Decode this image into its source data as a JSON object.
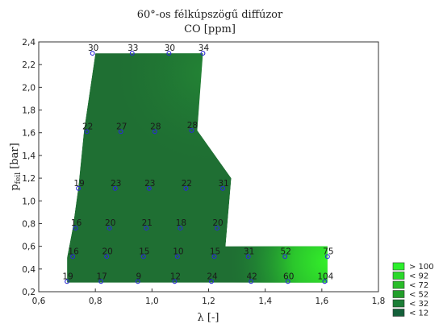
{
  "chart_data": {
    "type": "contour",
    "title": "60°-os félkúpszögű diffúzor",
    "subtitle": "CO [ppm]",
    "xlabel": "λ [-]",
    "ylabel_main": "p",
    "ylabel_sub": "feil",
    "ylabel_unit": "[bar]",
    "xlim": [
      0.6,
      1.8
    ],
    "ylim": [
      0.2,
      2.4
    ],
    "x_ticks": [
      "0,6",
      "0,8",
      "1,0",
      "1,2",
      "1,4",
      "1,6",
      "1,8"
    ],
    "y_ticks": [
      "0,2",
      "0,4",
      "0,6",
      "0,8",
      "1,0",
      "1,2",
      "1,4",
      "1,6",
      "1,8",
      "2,0",
      "2,2",
      "2,4"
    ],
    "region": [
      [
        0.8,
        2.3
      ],
      [
        1.18,
        2.3
      ],
      [
        1.16,
        1.62
      ],
      [
        1.28,
        1.2
      ],
      [
        1.26,
        0.6
      ],
      [
        1.62,
        0.6
      ],
      [
        1.62,
        0.28
      ],
      [
        0.7,
        0.28
      ],
      [
        0.7,
        0.5
      ],
      [
        0.72,
        0.76
      ],
      [
        0.74,
        1.12
      ],
      [
        0.76,
        1.62
      ]
    ],
    "points": [
      {
        "x": 0.79,
        "y": 2.3,
        "value": "30"
      },
      {
        "x": 0.93,
        "y": 2.3,
        "value": "33"
      },
      {
        "x": 1.06,
        "y": 2.3,
        "value": "30"
      },
      {
        "x": 1.18,
        "y": 2.3,
        "value": "34"
      },
      {
        "x": 0.77,
        "y": 1.61,
        "value": "22"
      },
      {
        "x": 0.89,
        "y": 1.61,
        "value": "27"
      },
      {
        "x": 1.01,
        "y": 1.61,
        "value": "28"
      },
      {
        "x": 1.14,
        "y": 1.62,
        "value": "28"
      },
      {
        "x": 0.74,
        "y": 1.11,
        "value": "19"
      },
      {
        "x": 0.87,
        "y": 1.11,
        "value": "23"
      },
      {
        "x": 0.99,
        "y": 1.11,
        "value": "23"
      },
      {
        "x": 1.12,
        "y": 1.11,
        "value": "22"
      },
      {
        "x": 1.25,
        "y": 1.11,
        "value": "31"
      },
      {
        "x": 0.73,
        "y": 0.76,
        "value": "16"
      },
      {
        "x": 0.85,
        "y": 0.76,
        "value": "20"
      },
      {
        "x": 0.98,
        "y": 0.76,
        "value": "21"
      },
      {
        "x": 1.1,
        "y": 0.76,
        "value": "18"
      },
      {
        "x": 1.23,
        "y": 0.76,
        "value": "20"
      },
      {
        "x": 0.72,
        "y": 0.51,
        "value": "16"
      },
      {
        "x": 0.84,
        "y": 0.51,
        "value": "20"
      },
      {
        "x": 0.97,
        "y": 0.51,
        "value": "15"
      },
      {
        "x": 1.09,
        "y": 0.51,
        "value": "10"
      },
      {
        "x": 1.22,
        "y": 0.51,
        "value": "15"
      },
      {
        "x": 1.34,
        "y": 0.51,
        "value": "31"
      },
      {
        "x": 1.47,
        "y": 0.51,
        "value": "52"
      },
      {
        "x": 1.62,
        "y": 0.51,
        "value": "75"
      },
      {
        "x": 0.7,
        "y": 0.29,
        "value": "19"
      },
      {
        "x": 0.82,
        "y": 0.29,
        "value": "17"
      },
      {
        "x": 0.95,
        "y": 0.29,
        "value": "9"
      },
      {
        "x": 1.08,
        "y": 0.29,
        "value": "12"
      },
      {
        "x": 1.21,
        "y": 0.29,
        "value": "24"
      },
      {
        "x": 1.35,
        "y": 0.29,
        "value": "42"
      },
      {
        "x": 1.48,
        "y": 0.29,
        "value": "60"
      },
      {
        "x": 1.61,
        "y": 0.29,
        "value": "104"
      }
    ],
    "legend": {
      "placement": "bottom-right",
      "items": [
        {
          "label": "> 100",
          "color": "#2cf02c"
        },
        {
          "label": "< 92",
          "color": "#2bd92b"
        },
        {
          "label": "< 72",
          "color": "#29bd29"
        },
        {
          "label": "< 52",
          "color": "#229e2a"
        },
        {
          "label": "< 32",
          "color": "#1b7d36"
        },
        {
          "label": "< 12",
          "color": "#14603a"
        }
      ]
    },
    "colors": {
      "marker": "#2a2ad6",
      "base_fill": "#1f6f33"
    },
    "grid": false
  }
}
